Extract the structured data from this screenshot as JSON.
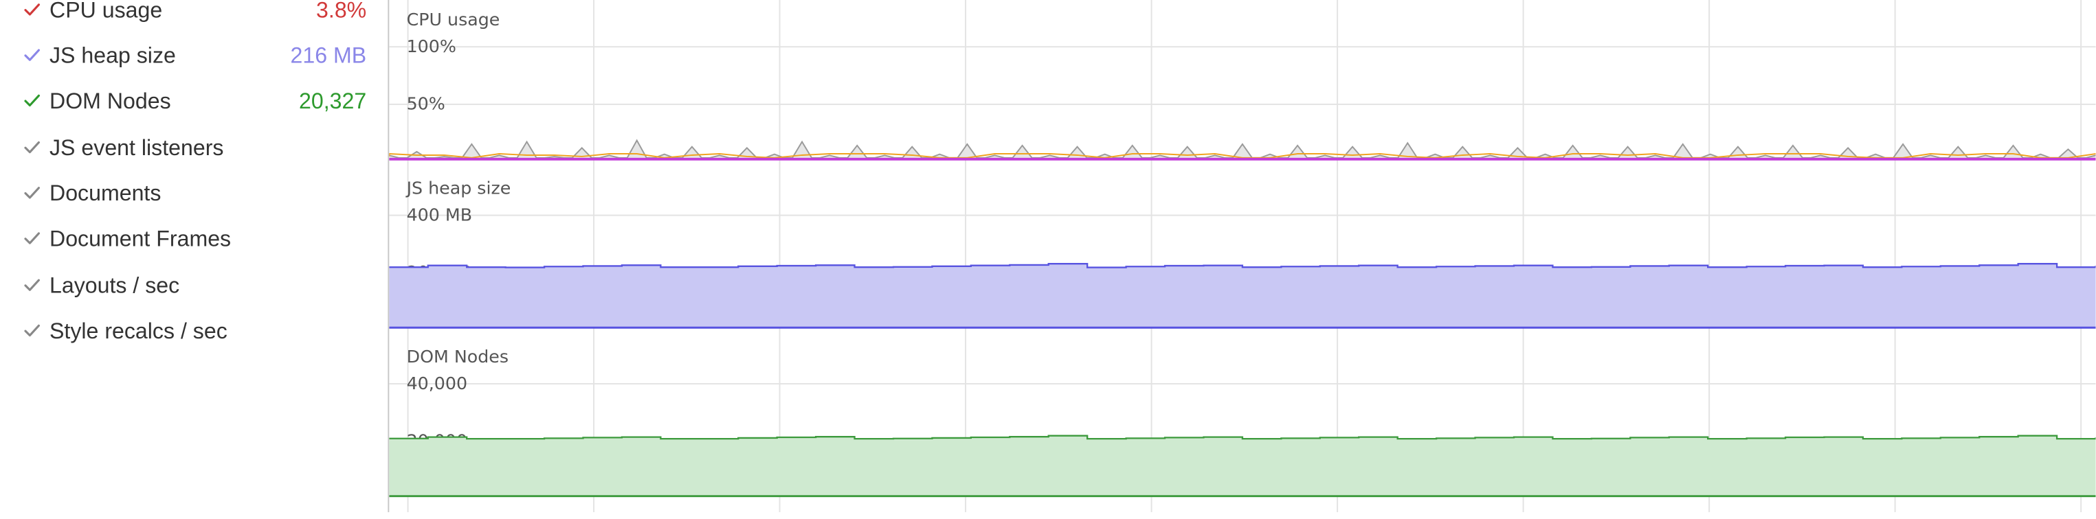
{
  "metrics": [
    {
      "label": "CPU usage",
      "value": "3.8%",
      "checked": true,
      "color": "#d13939"
    },
    {
      "label": "JS heap size",
      "value": "216 MB",
      "checked": true,
      "color": "#8a86e8"
    },
    {
      "label": "DOM Nodes",
      "value": "20,327",
      "checked": true,
      "color": "#2d9a2d"
    },
    {
      "label": "JS event listeners",
      "value": "",
      "checked": true,
      "color": "#888888"
    },
    {
      "label": "Documents",
      "value": "",
      "checked": true,
      "color": "#888888"
    },
    {
      "label": "Document Frames",
      "value": "",
      "checked": true,
      "color": "#888888"
    },
    {
      "label": "Layouts / sec",
      "value": "",
      "checked": true,
      "color": "#888888"
    },
    {
      "label": "Style recalcs / sec",
      "value": "",
      "checked": true,
      "color": "#888888"
    }
  ],
  "icons": {
    "check": "check-icon"
  },
  "colors": {
    "cpu_gray": "#9a9a9a",
    "cpu_orange": "#f0a21f",
    "cpu_magenta": "#c23cd9",
    "heap_line": "#5753e0",
    "heap_fill": "#c9c8f4",
    "dom_line": "#3c9a3c",
    "dom_fill": "#cfead0",
    "grid": "#e3e3e3"
  },
  "chart_data": [
    {
      "type": "area",
      "title": "CPU usage",
      "y_tick_labels": [
        "100%",
        "50%"
      ],
      "ylim": [
        0,
        100
      ],
      "series": [
        {
          "values": [
            3,
            6,
            2,
            12,
            3,
            14,
            2,
            9,
            3,
            15,
            4,
            10,
            3,
            9,
            4,
            14,
            3,
            11,
            3,
            10,
            4,
            12,
            3,
            11,
            3,
            10,
            4,
            11,
            3,
            10,
            3,
            12,
            4,
            11,
            3,
            10,
            3,
            13,
            4,
            10,
            3,
            9,
            4,
            11,
            3,
            10,
            3,
            12,
            4,
            10,
            3,
            11,
            3,
            9,
            4,
            12,
            3,
            10,
            3,
            11,
            4,
            8,
            3
          ]
        }
      ]
    },
    {
      "type": "area",
      "title": "JS heap size",
      "y_tick_labels": [
        "400 MB",
        "200 MB"
      ],
      "ylim": [
        0,
        440
      ],
      "series": [
        {
          "name": "JS heap size",
          "values": [
            214,
            220,
            214,
            213,
            216,
            218,
            221,
            214,
            214,
            217,
            219,
            221,
            214,
            215,
            217,
            220,
            222,
            226,
            213,
            216,
            219,
            220,
            214,
            216,
            218,
            220,
            214,
            216,
            218,
            220,
            214,
            215,
            218,
            220,
            214,
            216,
            219,
            220,
            214,
            216,
            218,
            221,
            226,
            214,
            216
          ]
        }
      ]
    },
    {
      "type": "area",
      "title": "DOM Nodes",
      "y_tick_labels": [
        "40,000",
        "20,000"
      ],
      "ylim": [
        0,
        44000
      ],
      "series": [
        {
          "name": "DOM Nodes",
          "values": [
            20400,
            20900,
            20300,
            20300,
            20500,
            20700,
            20900,
            20300,
            20300,
            20600,
            20800,
            21000,
            20300,
            20400,
            20600,
            20800,
            21000,
            21400,
            20300,
            20500,
            20700,
            20900,
            20300,
            20500,
            20700,
            20900,
            20300,
            20500,
            20700,
            20900,
            20300,
            20400,
            20700,
            20900,
            20300,
            20500,
            20800,
            20900,
            20300,
            20500,
            20700,
            21000,
            21400,
            20300,
            20500
          ]
        }
      ]
    }
  ]
}
